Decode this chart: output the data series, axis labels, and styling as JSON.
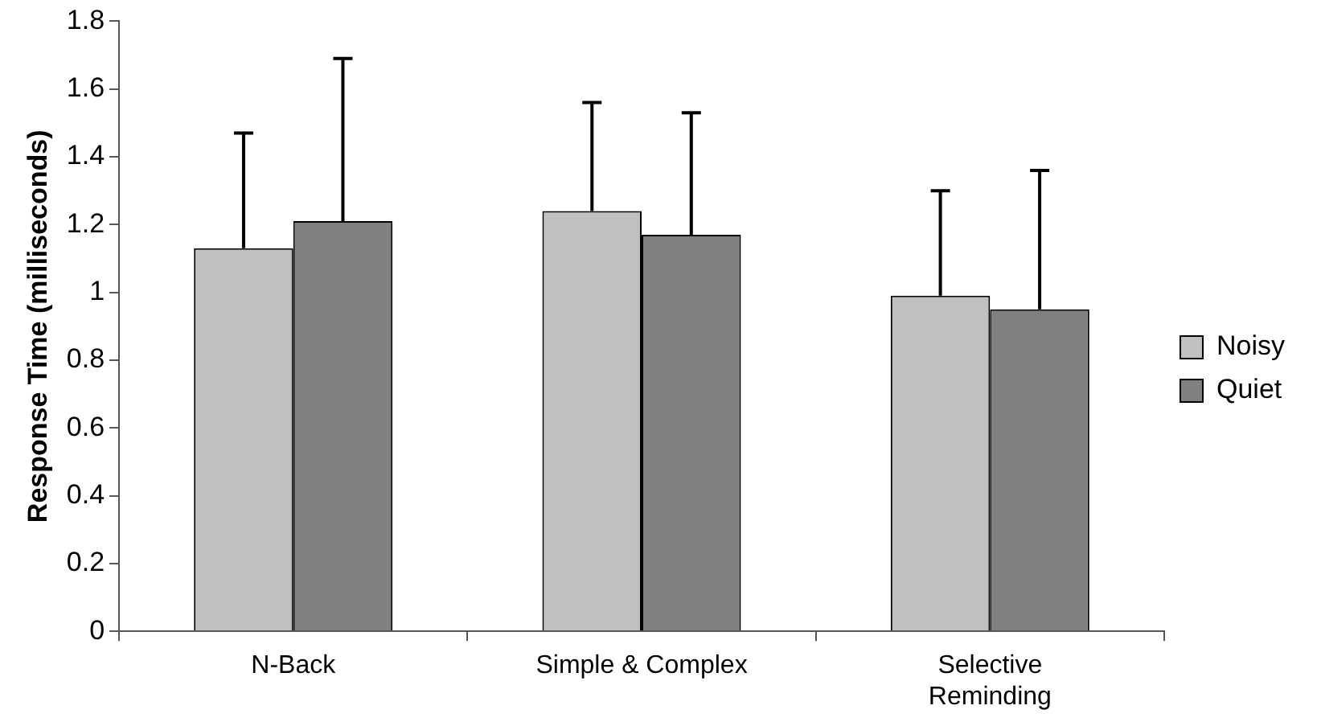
{
  "chart_data": {
    "type": "bar",
    "ylabel": "Response Time (milliseconds)",
    "categories": [
      "N-Back",
      "Simple & Complex",
      "Selective Reminding"
    ],
    "series": [
      {
        "name": "Noisy",
        "color": "#c0c0c0",
        "values": [
          1.13,
          1.24,
          0.99
        ],
        "errors": [
          [
            1.13,
            1.47
          ],
          [
            1.24,
            1.56
          ],
          [
            0.99,
            1.3
          ]
        ]
      },
      {
        "name": "Quiet",
        "color": "#808080",
        "values": [
          1.21,
          1.17,
          0.95
        ],
        "errors": [
          [
            1.21,
            1.69
          ],
          [
            1.17,
            1.53
          ],
          [
            0.95,
            1.36
          ]
        ]
      }
    ],
    "ylim": [
      0,
      1.8
    ],
    "yticks": [
      0,
      0.2,
      0.4,
      0.6,
      0.8,
      1,
      1.2,
      1.4,
      1.6,
      1.8
    ],
    "grid": false,
    "legend": "right"
  }
}
